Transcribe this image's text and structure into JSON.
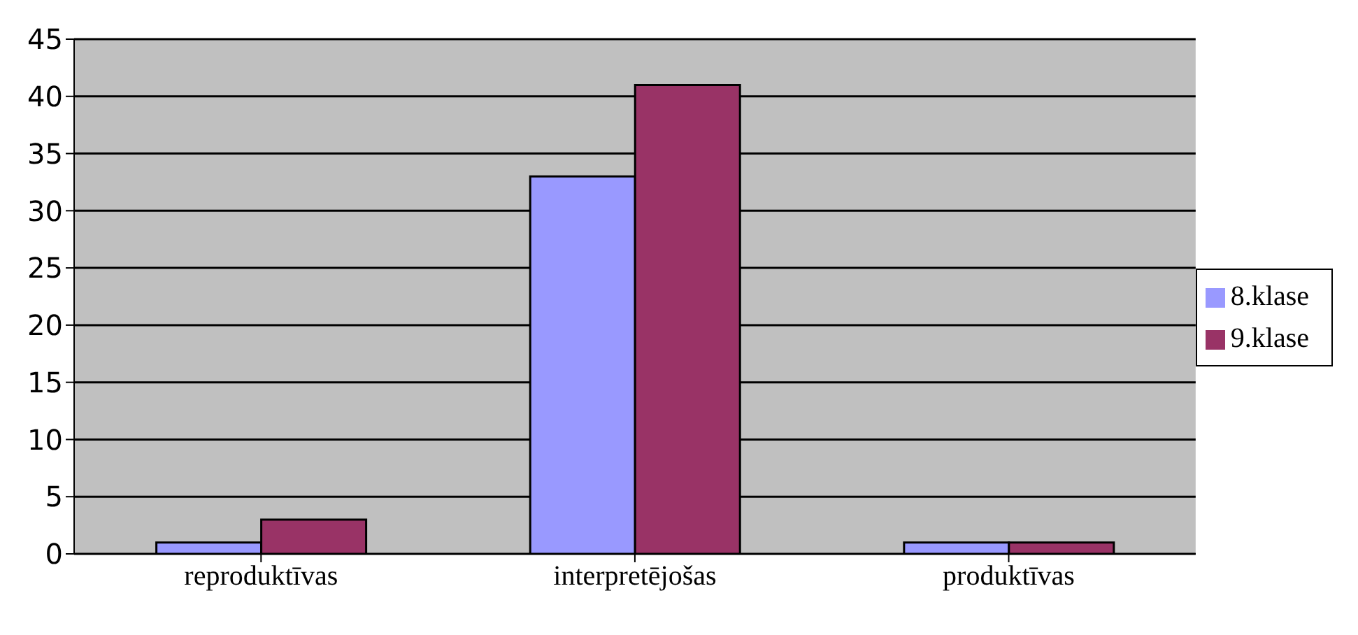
{
  "chart_data": {
    "type": "bar",
    "categories": [
      "reproduktīvas",
      "interpretējošas",
      "produktīvas"
    ],
    "series": [
      {
        "name": "8.klase",
        "color": "#9999ff",
        "values": [
          1,
          33,
          1
        ]
      },
      {
        "name": "9.klase",
        "color": "#993366",
        "values": [
          3,
          41,
          1
        ]
      }
    ],
    "ylim": [
      0,
      45
    ],
    "yticks": [
      0,
      5,
      10,
      15,
      20,
      25,
      30,
      35,
      40,
      45
    ],
    "grid": "y",
    "legend": "right"
  }
}
